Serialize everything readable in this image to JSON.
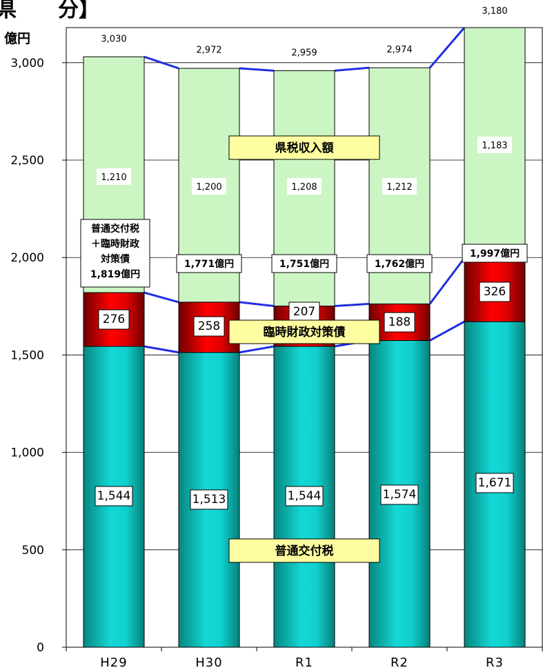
{
  "title_fragment": "県　　分】",
  "chart_data": {
    "type": "bar",
    "stacked": true,
    "unit_label": "億円",
    "categories": [
      "H29",
      "H30",
      "R1",
      "R2",
      "R3"
    ],
    "ylim": [
      0,
      3180
    ],
    "yticks": [
      0,
      500,
      1000,
      1500,
      2000,
      2500,
      3000
    ],
    "ytick_labels": [
      "0",
      "500",
      "1,000",
      "1,500",
      "2,000",
      "2,500",
      "3,000"
    ],
    "grid": true,
    "series": [
      {
        "name": "普通交付税",
        "values": [
          1544,
          1513,
          1544,
          1574,
          1671
        ],
        "labels": [
          "1,544",
          "1,513",
          "1,544",
          "1,574",
          "1,671"
        ],
        "color": "#0fb5b5"
      },
      {
        "name": "臨時財政対策債",
        "values": [
          276,
          258,
          207,
          188,
          326
        ],
        "labels": [
          "276",
          "258",
          "207",
          "188",
          "326"
        ],
        "color": "#b01010"
      },
      {
        "name": "県税収入額",
        "values": [
          1210,
          1200,
          1208,
          1212,
          1183
        ],
        "labels": [
          "1,210",
          "1,200",
          "1,208",
          "1,212",
          "1,183"
        ],
        "color": "#ccf5c4"
      }
    ],
    "totals": [
      3030,
      2972,
      2959,
      2974,
      3180
    ],
    "total_labels": [
      "3,030",
      "2,972",
      "2,959",
      "2,974",
      "3,180"
    ],
    "subtotals": [
      1819,
      1771,
      1751,
      1762,
      1997
    ],
    "subtotal_labels": [
      "普通交付税\n＋臨時財政\n対策債\n1,819億円",
      "1,771億円",
      "1,751億円",
      "1,762億円",
      "1,997億円"
    ]
  }
}
